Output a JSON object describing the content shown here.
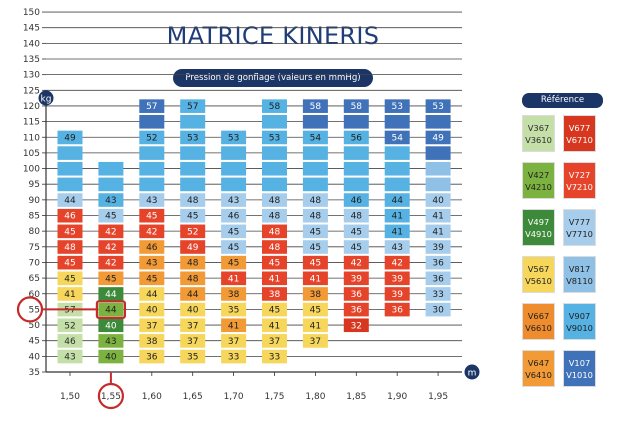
{
  "title": "MATRICE KINERIS",
  "subtitle": "Pression de gonflage (valeurs en mmHg)",
  "legend": {
    "title": "Référence",
    "items": [
      {
        "codes": [
          "V367",
          "V3610"
        ],
        "color": "#c4e0a8",
        "text": "#2b2b2b"
      },
      {
        "codes": [
          "V677",
          "V6710"
        ],
        "color": "#d8371f",
        "text": "#ffffff"
      },
      {
        "codes": [
          "V427",
          "V4210"
        ],
        "color": "#7cb340",
        "text": "#1f1f1f"
      },
      {
        "codes": [
          "V727",
          "V7210"
        ],
        "color": "#e5442a",
        "text": "#ffffff"
      },
      {
        "codes": [
          "V497",
          "V4910"
        ],
        "color": "#3d8b3a",
        "text": "#ffffff"
      },
      {
        "codes": [
          "V777",
          "V7710"
        ],
        "color": "#a6cdec",
        "text": "#1f1f1f"
      },
      {
        "codes": [
          "V567",
          "V5610"
        ],
        "color": "#f6d75c",
        "text": "#1f1f1f"
      },
      {
        "codes": [
          "V817",
          "V8110"
        ],
        "color": "#8fc0e6",
        "text": "#1f1f1f"
      },
      {
        "codes": [
          "V667",
          "V6610"
        ],
        "color": "#ef8d2e",
        "text": "#1f1f1f"
      },
      {
        "codes": [
          "V907",
          "V9010"
        ],
        "color": "#55b2e3",
        "text": "#1f1f1f"
      },
      {
        "codes": [
          "V647",
          "V6410"
        ],
        "color": "#f29a35",
        "text": "#1f1f1f"
      },
      {
        "codes": [
          "V107",
          "V1010"
        ],
        "color": "#3f72b8",
        "text": "#ffffff"
      }
    ]
  },
  "chart_data": {
    "type": "heatmap",
    "title": "MATRICE KINERIS",
    "subtitle": "Pression de gonflage (valeurs en mmHg)",
    "x_unit": "m",
    "y_unit": "kg",
    "x_ticks": [
      "1,50",
      "1,55",
      "1,60",
      "1,65",
      "1,70",
      "1,75",
      "1,80",
      "1,85",
      "1,90",
      "1,95"
    ],
    "y_ticks": [
      35,
      40,
      45,
      50,
      55,
      60,
      65,
      70,
      75,
      80,
      85,
      90,
      95,
      100,
      105,
      110,
      115,
      120,
      125,
      130,
      135,
      140,
      145,
      150
    ],
    "ylim": [
      35,
      150
    ],
    "highlight": {
      "x": "1,55",
      "y": 55
    },
    "columns": [
      {
        "x": "1,50",
        "cells": [
          {
            "w": 40,
            "v": 43,
            "ref": "V367"
          },
          {
            "w": 45,
            "v": 46,
            "ref": "V367"
          },
          {
            "w": 50,
            "v": 52,
            "ref": "V367"
          },
          {
            "w": 55,
            "v": 57,
            "ref": "V367"
          },
          {
            "w": 60,
            "v": 41,
            "ref": "V567"
          },
          {
            "w": 65,
            "v": 45,
            "ref": "V567"
          },
          {
            "w": 70,
            "v": 45,
            "ref": "V727"
          },
          {
            "w": 75,
            "v": 48,
            "ref": "V727"
          },
          {
            "w": 80,
            "v": 45,
            "ref": "V727"
          },
          {
            "w": 85,
            "v": 46,
            "ref": "V727"
          },
          {
            "w": 90,
            "v": 44,
            "ref": "V777"
          },
          {
            "w": 95,
            "v": "",
            "ref": "V907"
          },
          {
            "w": 100,
            "v": "",
            "ref": "V907"
          },
          {
            "w": 105,
            "v": "",
            "ref": "V907"
          },
          {
            "w": 110,
            "v": 49,
            "ref": "V907"
          }
        ]
      },
      {
        "x": "1,55",
        "cells": [
          {
            "w": 40,
            "v": 40,
            "ref": "V427"
          },
          {
            "w": 45,
            "v": 43,
            "ref": "V427"
          },
          {
            "w": 50,
            "v": 40,
            "ref": "V497"
          },
          {
            "w": 55,
            "v": 44,
            "ref": "V427"
          },
          {
            "w": 60,
            "v": 44,
            "ref": "V497"
          },
          {
            "w": 65,
            "v": 45,
            "ref": "V647"
          },
          {
            "w": 70,
            "v": 42,
            "ref": "V727"
          },
          {
            "w": 75,
            "v": 42,
            "ref": "V727"
          },
          {
            "w": 80,
            "v": 42,
            "ref": "V727"
          },
          {
            "w": 85,
            "v": 45,
            "ref": "V777"
          },
          {
            "w": 90,
            "v": 43,
            "ref": "V907"
          },
          {
            "w": 95,
            "v": "",
            "ref": "V907"
          },
          {
            "w": 100,
            "v": "",
            "ref": "V907"
          }
        ]
      },
      {
        "x": "1,60",
        "cells": [
          {
            "w": 40,
            "v": 36,
            "ref": "V567"
          },
          {
            "w": 45,
            "v": 38,
            "ref": "V567"
          },
          {
            "w": 50,
            "v": 37,
            "ref": "V567"
          },
          {
            "w": 55,
            "v": 40,
            "ref": "V567"
          },
          {
            "w": 60,
            "v": 44,
            "ref": "V567"
          },
          {
            "w": 65,
            "v": 45,
            "ref": "V647"
          },
          {
            "w": 70,
            "v": 43,
            "ref": "V647"
          },
          {
            "w": 75,
            "v": 46,
            "ref": "V647"
          },
          {
            "w": 80,
            "v": 42,
            "ref": "V727"
          },
          {
            "w": 85,
            "v": 45,
            "ref": "V727"
          },
          {
            "w": 90,
            "v": 43,
            "ref": "V777"
          },
          {
            "w": 95,
            "v": "",
            "ref": "V907"
          },
          {
            "w": 100,
            "v": "",
            "ref": "V907"
          },
          {
            "w": 105,
            "v": "",
            "ref": "V907"
          },
          {
            "w": 110,
            "v": 52,
            "ref": "V907"
          },
          {
            "w": 115,
            "v": "",
            "ref": "V107"
          },
          {
            "w": 120,
            "v": 57,
            "ref": "V107"
          }
        ]
      },
      {
        "x": "1,65",
        "cells": [
          {
            "w": 40,
            "v": 35,
            "ref": "V567"
          },
          {
            "w": 45,
            "v": 37,
            "ref": "V567"
          },
          {
            "w": 50,
            "v": 37,
            "ref": "V567"
          },
          {
            "w": 55,
            "v": 40,
            "ref": "V567"
          },
          {
            "w": 60,
            "v": 44,
            "ref": "V647"
          },
          {
            "w": 65,
            "v": 48,
            "ref": "V647"
          },
          {
            "w": 70,
            "v": 48,
            "ref": "V647"
          },
          {
            "w": 75,
            "v": 49,
            "ref": "V727"
          },
          {
            "w": 80,
            "v": 52,
            "ref": "V727"
          },
          {
            "w": 85,
            "v": 45,
            "ref": "V777"
          },
          {
            "w": 90,
            "v": 48,
            "ref": "V777"
          },
          {
            "w": 95,
            "v": "",
            "ref": "V907"
          },
          {
            "w": 100,
            "v": "",
            "ref": "V907"
          },
          {
            "w": 105,
            "v": "",
            "ref": "V907"
          },
          {
            "w": 110,
            "v": 53,
            "ref": "V907"
          },
          {
            "w": 115,
            "v": "",
            "ref": "V907"
          },
          {
            "w": 120,
            "v": 57,
            "ref": "V907"
          }
        ]
      },
      {
        "x": "1,70",
        "cells": [
          {
            "w": 40,
            "v": 33,
            "ref": "V567"
          },
          {
            "w": 45,
            "v": 37,
            "ref": "V567"
          },
          {
            "w": 50,
            "v": 41,
            "ref": "V647"
          },
          {
            "w": 55,
            "v": 35,
            "ref": "V567"
          },
          {
            "w": 60,
            "v": 38,
            "ref": "V647"
          },
          {
            "w": 65,
            "v": 41,
            "ref": "V727"
          },
          {
            "w": 70,
            "v": 45,
            "ref": "V647"
          },
          {
            "w": 75,
            "v": 45,
            "ref": "V777"
          },
          {
            "w": 80,
            "v": 45,
            "ref": "V777"
          },
          {
            "w": 85,
            "v": 46,
            "ref": "V777"
          },
          {
            "w": 90,
            "v": 43,
            "ref": "V777"
          },
          {
            "w": 95,
            "v": "",
            "ref": "V907"
          },
          {
            "w": 100,
            "v": "",
            "ref": "V907"
          },
          {
            "w": 105,
            "v": "",
            "ref": "V907"
          },
          {
            "w": 110,
            "v": 53,
            "ref": "V907"
          }
        ]
      },
      {
        "x": "1,75",
        "cells": [
          {
            "w": 40,
            "v": 33,
            "ref": "V567"
          },
          {
            "w": 45,
            "v": 37,
            "ref": "V567"
          },
          {
            "w": 50,
            "v": 41,
            "ref": "V567"
          },
          {
            "w": 55,
            "v": 45,
            "ref": "V567"
          },
          {
            "w": 60,
            "v": 38,
            "ref": "V727"
          },
          {
            "w": 65,
            "v": 41,
            "ref": "V727"
          },
          {
            "w": 70,
            "v": 45,
            "ref": "V727"
          },
          {
            "w": 75,
            "v": 48,
            "ref": "V727"
          },
          {
            "w": 80,
            "v": 48,
            "ref": "V727"
          },
          {
            "w": 85,
            "v": 48,
            "ref": "V777"
          },
          {
            "w": 90,
            "v": 48,
            "ref": "V777"
          },
          {
            "w": 95,
            "v": "",
            "ref": "V907"
          },
          {
            "w": 100,
            "v": "",
            "ref": "V907"
          },
          {
            "w": 105,
            "v": "",
            "ref": "V907"
          },
          {
            "w": 110,
            "v": 53,
            "ref": "V907"
          },
          {
            "w": 115,
            "v": "",
            "ref": "V907"
          },
          {
            "w": 120,
            "v": 58,
            "ref": "V907"
          }
        ]
      },
      {
        "x": "1,80",
        "cells": [
          {
            "w": 45,
            "v": 37,
            "ref": "V567"
          },
          {
            "w": 50,
            "v": 41,
            "ref": "V567"
          },
          {
            "w": 55,
            "v": 45,
            "ref": "V567"
          },
          {
            "w": 60,
            "v": 38,
            "ref": "V647"
          },
          {
            "w": 65,
            "v": 41,
            "ref": "V727"
          },
          {
            "w": 70,
            "v": 45,
            "ref": "V727"
          },
          {
            "w": 75,
            "v": 45,
            "ref": "V777"
          },
          {
            "w": 80,
            "v": 45,
            "ref": "V777"
          },
          {
            "w": 85,
            "v": 48,
            "ref": "V777"
          },
          {
            "w": 90,
            "v": 48,
            "ref": "V777"
          },
          {
            "w": 95,
            "v": "",
            "ref": "V907"
          },
          {
            "w": 100,
            "v": "",
            "ref": "V907"
          },
          {
            "w": 105,
            "v": "",
            "ref": "V907"
          },
          {
            "w": 110,
            "v": 54,
            "ref": "V907"
          },
          {
            "w": 115,
            "v": "",
            "ref": "V107"
          },
          {
            "w": 120,
            "v": 58,
            "ref": "V107"
          }
        ]
      },
      {
        "x": "1,85",
        "cells": [
          {
            "w": 50,
            "v": 32,
            "ref": "V677"
          },
          {
            "w": 55,
            "v": 36,
            "ref": "V727"
          },
          {
            "w": 60,
            "v": 36,
            "ref": "V727"
          },
          {
            "w": 65,
            "v": 39,
            "ref": "V727"
          },
          {
            "w": 70,
            "v": 42,
            "ref": "V727"
          },
          {
            "w": 75,
            "v": 45,
            "ref": "V777"
          },
          {
            "w": 80,
            "v": 45,
            "ref": "V777"
          },
          {
            "w": 85,
            "v": 48,
            "ref": "V777"
          },
          {
            "w": 90,
            "v": 46,
            "ref": "V907"
          },
          {
            "w": 95,
            "v": "",
            "ref": "V907"
          },
          {
            "w": 100,
            "v": "",
            "ref": "V907"
          },
          {
            "w": 105,
            "v": "",
            "ref": "V907"
          },
          {
            "w": 110,
            "v": 56,
            "ref": "V907"
          },
          {
            "w": 115,
            "v": "",
            "ref": "V107"
          },
          {
            "w": 120,
            "v": 58,
            "ref": "V107"
          }
        ]
      },
      {
        "x": "1,90",
        "cells": [
          {
            "w": 55,
            "v": 36,
            "ref": "V727"
          },
          {
            "w": 60,
            "v": 39,
            "ref": "V727"
          },
          {
            "w": 65,
            "v": 39,
            "ref": "V727"
          },
          {
            "w": 70,
            "v": 42,
            "ref": "V727"
          },
          {
            "w": 75,
            "v": 43,
            "ref": "V777"
          },
          {
            "w": 80,
            "v": 41,
            "ref": "V907"
          },
          {
            "w": 85,
            "v": 41,
            "ref": "V907"
          },
          {
            "w": 90,
            "v": 44,
            "ref": "V907"
          },
          {
            "w": 95,
            "v": "",
            "ref": "V907"
          },
          {
            "w": 100,
            "v": "",
            "ref": "V907"
          },
          {
            "w": 105,
            "v": "",
            "ref": "V907"
          },
          {
            "w": 110,
            "v": 54,
            "ref": "V107"
          },
          {
            "w": 115,
            "v": "",
            "ref": "V107"
          },
          {
            "w": 120,
            "v": 53,
            "ref": "V107"
          }
        ]
      },
      {
        "x": "1,95",
        "cells": [
          {
            "w": 55,
            "v": 30,
            "ref": "V777"
          },
          {
            "w": 60,
            "v": 33,
            "ref": "V777"
          },
          {
            "w": 65,
            "v": 36,
            "ref": "V777"
          },
          {
            "w": 70,
            "v": 36,
            "ref": "V777"
          },
          {
            "w": 75,
            "v": 39,
            "ref": "V777"
          },
          {
            "w": 80,
            "v": 41,
            "ref": "V777"
          },
          {
            "w": 85,
            "v": 41,
            "ref": "V777"
          },
          {
            "w": 90,
            "v": 40,
            "ref": "V777"
          },
          {
            "w": 95,
            "v": "",
            "ref": "V817"
          },
          {
            "w": 100,
            "v": "",
            "ref": "V817"
          },
          {
            "w": 105,
            "v": "",
            "ref": "V107"
          },
          {
            "w": 110,
            "v": 49,
            "ref": "V107"
          },
          {
            "w": 115,
            "v": "",
            "ref": "V107"
          },
          {
            "w": 120,
            "v": 53,
            "ref": "V107"
          }
        ]
      }
    ]
  }
}
